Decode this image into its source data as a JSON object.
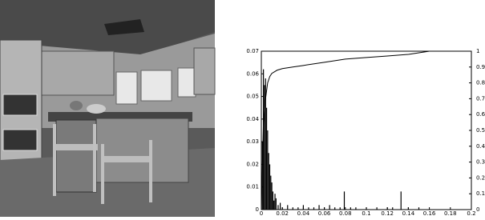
{
  "chart_data": {
    "type": "combo",
    "xlim": [
      0,
      0.2
    ],
    "xticks": [
      0,
      0.02,
      0.04,
      0.06,
      0.08,
      0.1,
      0.12,
      0.14,
      0.16,
      0.18,
      0.2
    ],
    "ylim": [
      0,
      0.07
    ],
    "yticks": [
      0,
      0.01,
      0.02,
      0.03,
      0.04,
      0.05,
      0.06,
      0.07
    ],
    "y2lim": [
      0,
      1
    ],
    "y2ticks": [
      0,
      0.1,
      0.2,
      0.3,
      0.4,
      0.5,
      0.6,
      0.7,
      0.8,
      0.9,
      1
    ],
    "series": [
      {
        "type": "bar",
        "color": "#000000",
        "x": [
          0.001,
          0.002,
          0.003,
          0.004,
          0.005,
          0.006,
          0.007,
          0.008,
          0.009,
          0.01,
          0.011,
          0.012,
          0.013,
          0.014,
          0.016,
          0.018,
          0.02,
          0.025,
          0.03,
          0.035,
          0.04,
          0.045,
          0.05,
          0.055,
          0.06,
          0.065,
          0.07,
          0.075,
          0.079,
          0.085,
          0.09,
          0.1,
          0.11,
          0.12,
          0.125,
          0.133,
          0.14,
          0.15
        ],
        "values": [
          0.03,
          0.062,
          0.055,
          0.058,
          0.045,
          0.035,
          0.025,
          0.02,
          0.015,
          0.012,
          0.008,
          0.004,
          0.007,
          0.005,
          0.002,
          0.003,
          0.001,
          0.002,
          0.001,
          0.001,
          0.002,
          0.001,
          0.001,
          0.002,
          0.001,
          0.002,
          0.001,
          0.001,
          0.008,
          0.001,
          0.001,
          0.001,
          0.001,
          0.001,
          0.001,
          0.008,
          0.001,
          0.001
        ]
      },
      {
        "type": "line",
        "axis": "y2",
        "color": "#000000",
        "x": [
          0,
          0.002,
          0.004,
          0.006,
          0.008,
          0.01,
          0.015,
          0.02,
          0.03,
          0.04,
          0.06,
          0.08,
          0.1,
          0.12,
          0.14,
          0.16,
          0.2
        ],
        "values": [
          0,
          0.55,
          0.7,
          0.8,
          0.84,
          0.86,
          0.88,
          0.89,
          0.9,
          0.91,
          0.93,
          0.95,
          0.96,
          0.97,
          0.98,
          1.0,
          1.0
        ]
      }
    ]
  }
}
